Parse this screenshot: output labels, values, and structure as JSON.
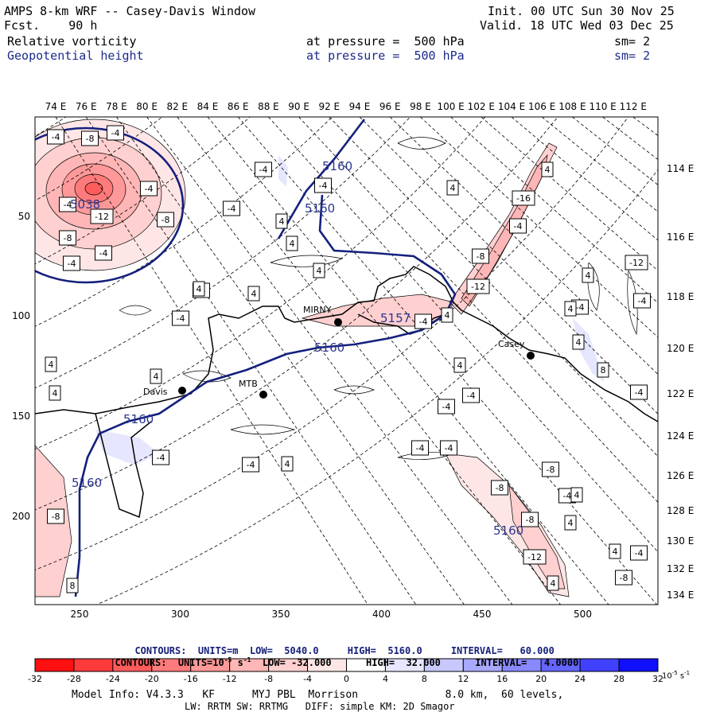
{
  "header": {
    "title": "AMPS 8-km WRF -- Casey-Davis Window",
    "fcst": "Fcst.    90 h",
    "init": "Init. 00 UTC Sun 30 Nov 25",
    "valid": "Valid. 18 UTC Wed 03 Dec 25",
    "field1": {
      "name": "Relative vorticity",
      "level": "at pressure =  500 hPa",
      "sm": "sm= 2"
    },
    "field2": {
      "name": "Geopotential height",
      "level": "at pressure =  500 hPa",
      "sm": "sm= 2"
    }
  },
  "axes": {
    "top_lon_labels": [
      "74 E",
      "76 E",
      "78 E",
      "80 E",
      "82 E",
      "84 E",
      "86 E",
      "88 E",
      "90 E",
      "92 E",
      "94 E",
      "96 E",
      "98 E",
      "100 E",
      "102 E",
      "104 E",
      "106 E",
      "108 E",
      "110 E",
      "112 E"
    ],
    "right_lon_labels": [
      "114 E",
      "116 E",
      "118 E",
      "120 E",
      "122 E",
      "124 E",
      "126 E",
      "128 E",
      "130 E",
      "132 E",
      "134 E"
    ],
    "left_grid_labels": [
      "50",
      "100",
      "150",
      "200"
    ],
    "bottom_grid_labels": [
      "250",
      "300",
      "350",
      "400",
      "450",
      "500"
    ]
  },
  "stations": [
    {
      "name": "Davis"
    },
    {
      "name": "MTB"
    },
    {
      "name": "MIRNY"
    },
    {
      "name": "Casey"
    }
  ],
  "height_contour_labels": [
    "5160",
    "5160",
    "5160",
    "5160",
    "5160",
    "5160"
  ],
  "center_labels": [
    "5038",
    "5157"
  ],
  "vorticity_labels": [
    "-4",
    "-8",
    "-4",
    "-4",
    "-12",
    "-8",
    "-8",
    "-4",
    "-4",
    "-4",
    "4",
    "4",
    "4",
    "-4",
    "4",
    "-4",
    "4",
    "-4",
    "-12",
    "-16",
    "-4",
    "-8",
    "-12",
    "4",
    "4",
    "-4",
    "-4",
    "4",
    "-4",
    "4",
    "-4",
    "4",
    "4",
    "-4",
    "-4",
    "4",
    "-4",
    "-4",
    "4",
    "-4",
    "4",
    "-8",
    "-8",
    "-4",
    "-4",
    "-8",
    "-8",
    "-12",
    "4",
    "8",
    "4",
    "4",
    "-4",
    "-8",
    "-4",
    "4",
    "8",
    "4",
    "4",
    "-4"
  ],
  "footer": {
    "contours_height": {
      "prefix": "CONTOURS:  UNITS=m  LOW=  5040.0",
      "high": "HIGH=  5160.0",
      "interval": "INTERVAL=   60.000"
    },
    "contours_vort": {
      "prefix": "CONTOURS:  UNITS=10",
      "exp": "-5",
      "suffix": " s",
      "exp2": "-1",
      "low": "  LOW= -32.000",
      "high": "HIGH=  32.000",
      "interval": "INTERVAL=   4.0000"
    },
    "colorbar_labels": [
      "-32",
      "-28",
      "-24",
      "-20",
      "-16",
      "-12",
      "-8",
      "-4",
      "0",
      "4",
      "8",
      "12",
      "16",
      "20",
      "24",
      "28",
      "32"
    ],
    "colorbar_units": "10",
    "colorbar_exp": "-5",
    "colorbar_units_tail": " s",
    "colorbar_exp2": "-1",
    "model_info": "Model Info: V4.3.3   KF      MYJ PBL  Morrison              8.0 km,  60 levels,",
    "model_info2": "LW: RRTM SW: RRTMG   DIFF: simple KM: 2D Smagor"
  },
  "colors": {
    "colorbar": [
      "#ff1010",
      "#ff3a3a",
      "#ff5c5c",
      "#ff7b7b",
      "#ff9999",
      "#ffb6b6",
      "#ffd0d0",
      "#ffe6e6",
      "#ffffff",
      "#ffffff",
      "#e6e6ff",
      "#c8c8ff",
      "#a8a8ff",
      "#8888ff",
      "#6565ff",
      "#4040ff",
      "#1010ff"
    ],
    "height_contour": "#14207d"
  }
}
